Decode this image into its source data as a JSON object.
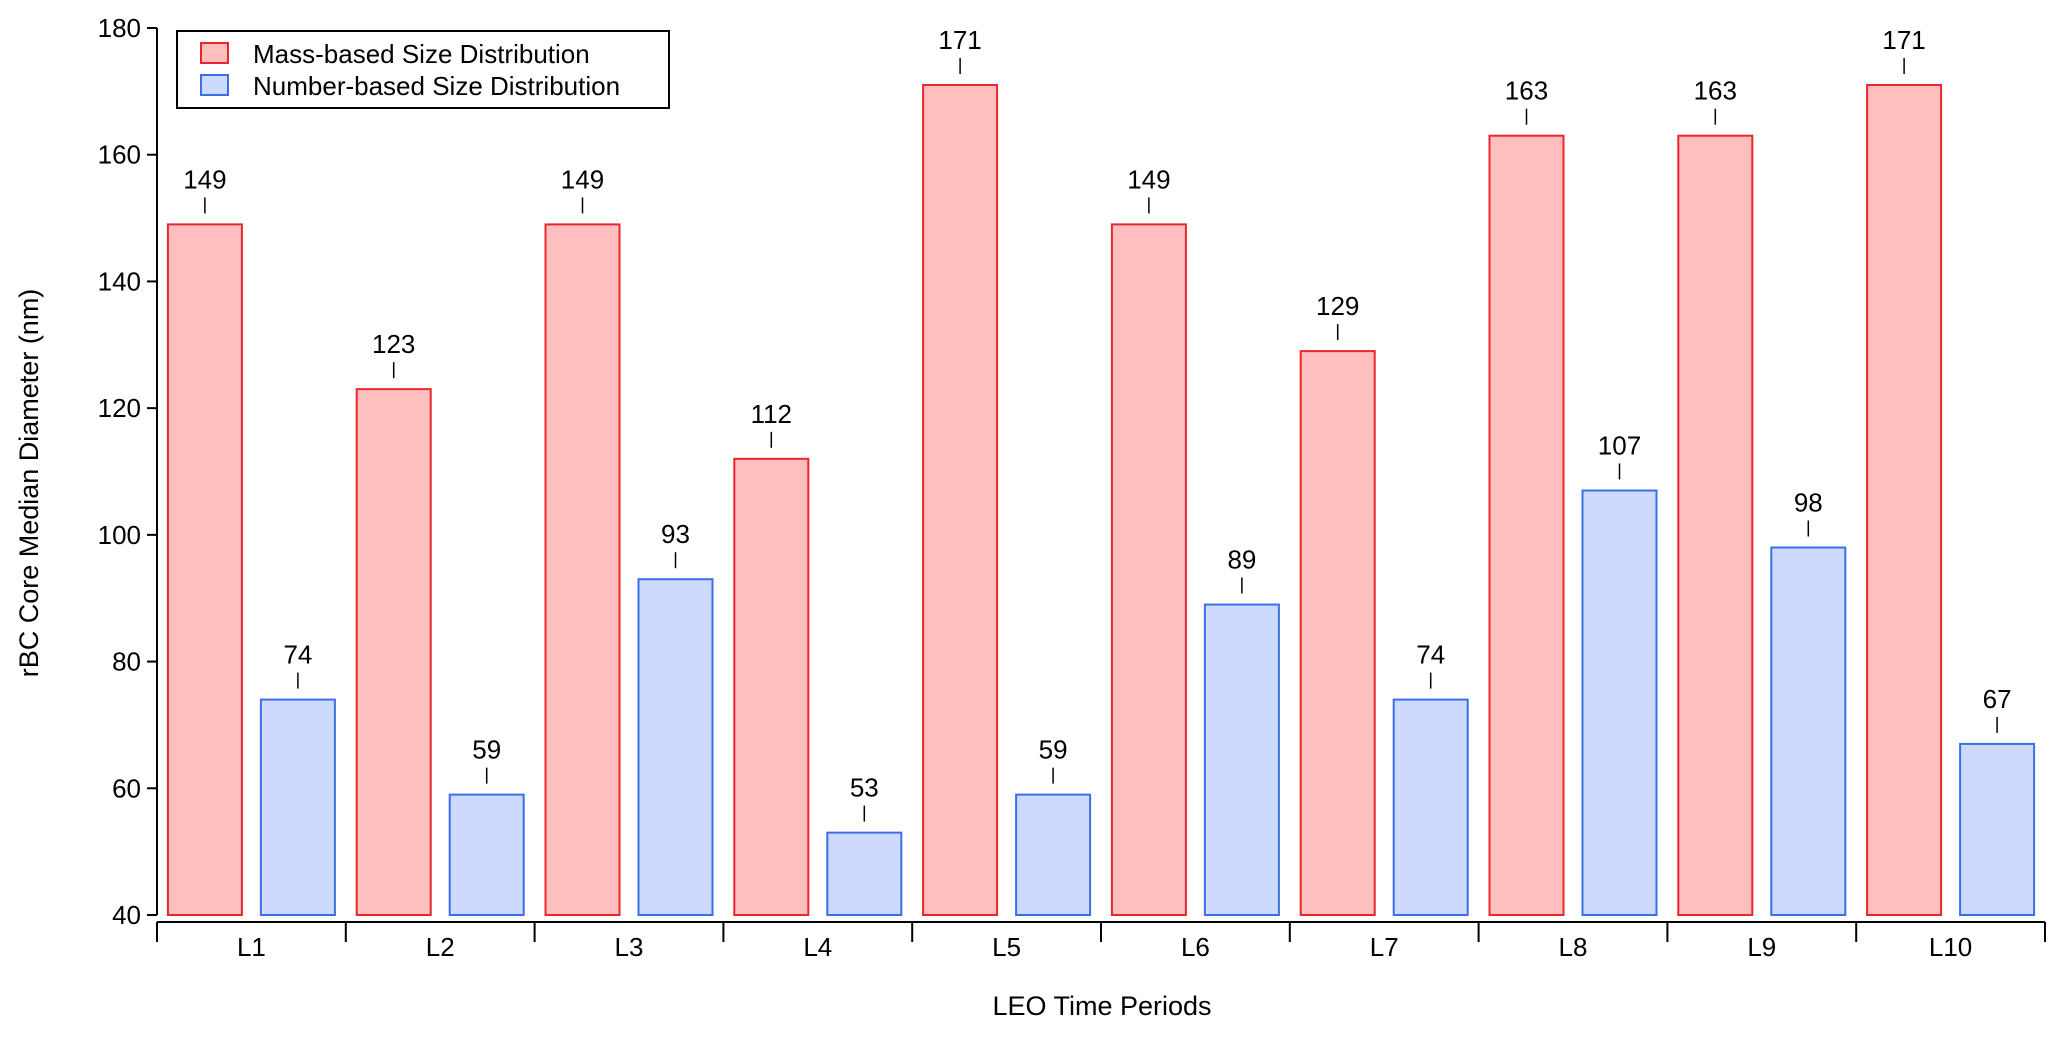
{
  "chart_data": {
    "type": "bar",
    "title": "",
    "xlabel": "LEO Time Periods",
    "ylabel": "rBC Core Median Diameter (nm)",
    "ylim": [
      40,
      180
    ],
    "yticks": [
      40,
      60,
      80,
      100,
      120,
      140,
      160,
      180
    ],
    "categories": [
      "L1",
      "L2",
      "L3",
      "L4",
      "L5",
      "L6",
      "L7",
      "L8",
      "L9",
      "L10"
    ],
    "series": [
      {
        "name": "Mass-based Size Distribution",
        "values": [
          149,
          123,
          149,
          112,
          171,
          149,
          129,
          163,
          163,
          171
        ],
        "fill": "#ffbfbf",
        "stroke": "#e8262b"
      },
      {
        "name": "Number-based Size Distribution",
        "values": [
          74,
          59,
          93,
          53,
          59,
          89,
          74,
          107,
          98,
          67
        ],
        "fill": "#cdd9fd",
        "stroke": "#3b6fe8"
      }
    ],
    "legend": "top-left",
    "grid": false,
    "data_labels": true
  }
}
